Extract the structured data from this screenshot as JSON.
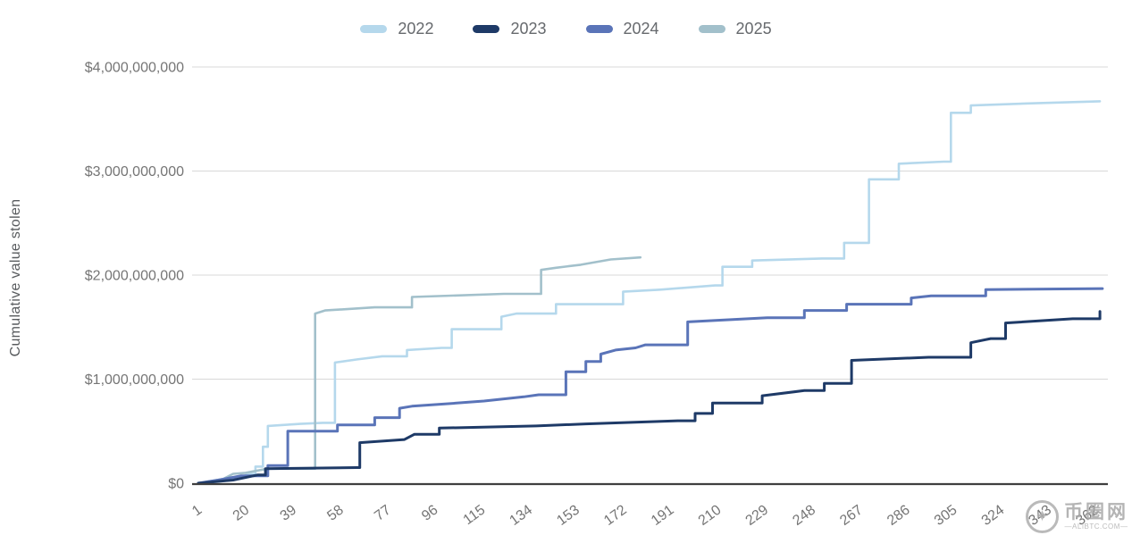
{
  "watermark": {
    "logo_icon": "four-point-star-seal",
    "site_name_cn": "币圈网",
    "site_url_line": "—ALIBTC.COM—"
  },
  "chart_data": {
    "type": "line",
    "subtype": "cumulative-step",
    "title": "",
    "xlabel": "",
    "ylabel": "Cumulative value stolen",
    "legend_position": "top-center",
    "grid": "horizontal",
    "x_axis_unit": "day of year",
    "xlim_days": [
      1,
      365
    ],
    "ylim_billions": [
      0,
      4
    ],
    "x_ticks": [
      1,
      20,
      39,
      58,
      77,
      96,
      115,
      134,
      153,
      172,
      191,
      210,
      229,
      248,
      267,
      286,
      305,
      324,
      343,
      362
    ],
    "y_ticks": [
      {
        "value_billions": 0,
        "label": "$0"
      },
      {
        "value_billions": 1,
        "label": "$1,000,000,000"
      },
      {
        "value_billions": 2,
        "label": "$2,000,000,000"
      },
      {
        "value_billions": 3,
        "label": "$3,000,000,000"
      },
      {
        "value_billions": 4,
        "label": "$4,000,000,000"
      }
    ],
    "series": [
      {
        "name": "2022",
        "color": "#b5d8ec",
        "line_width": 2.6,
        "points_day_valueBillions": [
          [
            1,
            0
          ],
          [
            11,
            0.02
          ],
          [
            18,
            0.05
          ],
          [
            21,
            0.09
          ],
          [
            24,
            0.16
          ],
          [
            27,
            0.35
          ],
          [
            29,
            0.55
          ],
          [
            42,
            0.57
          ],
          [
            51,
            0.58
          ],
          [
            56,
            1.16
          ],
          [
            65,
            1.19
          ],
          [
            75,
            1.22
          ],
          [
            85,
            1.28
          ],
          [
            99,
            1.3
          ],
          [
            103,
            1.48
          ],
          [
            123,
            1.6
          ],
          [
            129,
            1.63
          ],
          [
            145,
            1.72
          ],
          [
            172,
            1.84
          ],
          [
            187,
            1.86
          ],
          [
            209,
            1.9
          ],
          [
            212,
            2.08
          ],
          [
            224,
            2.14
          ],
          [
            252,
            2.16
          ],
          [
            261,
            2.31
          ],
          [
            271,
            2.92
          ],
          [
            283,
            3.07
          ],
          [
            301,
            3.09
          ],
          [
            304,
            3.56
          ],
          [
            312,
            3.63
          ],
          [
            335,
            3.65
          ],
          [
            364,
            3.67
          ]
        ]
      },
      {
        "name": "2023",
        "color": "#1e3a67",
        "line_width": 3,
        "points_day_valueBillions": [
          [
            1,
            0
          ],
          [
            15,
            0.03
          ],
          [
            25,
            0.08
          ],
          [
            28,
            0.14
          ],
          [
            65,
            0.15
          ],
          [
            66,
            0.39
          ],
          [
            84,
            0.42
          ],
          [
            88,
            0.47
          ],
          [
            98,
            0.53
          ],
          [
            137,
            0.55
          ],
          [
            157,
            0.57
          ],
          [
            194,
            0.6
          ],
          [
            201,
            0.67
          ],
          [
            208,
            0.77
          ],
          [
            228,
            0.84
          ],
          [
            245,
            0.89
          ],
          [
            253,
            0.96
          ],
          [
            264,
            1.18
          ],
          [
            295,
            1.21
          ],
          [
            312,
            1.35
          ],
          [
            320,
            1.39
          ],
          [
            326,
            1.54
          ],
          [
            353,
            1.58
          ],
          [
            364,
            1.65
          ]
        ]
      },
      {
        "name": "2024",
        "color": "#5a74b8",
        "line_width": 3,
        "points_day_valueBillions": [
          [
            1,
            0
          ],
          [
            9,
            0.03
          ],
          [
            18,
            0.07
          ],
          [
            29,
            0.17
          ],
          [
            37,
            0.5
          ],
          [
            57,
            0.56
          ],
          [
            72,
            0.63
          ],
          [
            82,
            0.72
          ],
          [
            87,
            0.74
          ],
          [
            105,
            0.77
          ],
          [
            116,
            0.79
          ],
          [
            132,
            0.83
          ],
          [
            138,
            0.85
          ],
          [
            149,
            1.07
          ],
          [
            157,
            1.17
          ],
          [
            163,
            1.24
          ],
          [
            169,
            1.28
          ],
          [
            177,
            1.3
          ],
          [
            181,
            1.33
          ],
          [
            198,
            1.55
          ],
          [
            230,
            1.59
          ],
          [
            245,
            1.66
          ],
          [
            262,
            1.72
          ],
          [
            288,
            1.78
          ],
          [
            296,
            1.8
          ],
          [
            318,
            1.86
          ],
          [
            365,
            1.87
          ]
        ]
      },
      {
        "name": "2025",
        "color": "#a2c0cb",
        "line_width": 2.6,
        "points_day_valueBillions": [
          [
            1,
            0
          ],
          [
            11,
            0.04
          ],
          [
            15,
            0.09
          ],
          [
            20,
            0.1
          ],
          [
            29,
            0.14
          ],
          [
            48,
            1.63
          ],
          [
            52,
            1.66
          ],
          [
            72,
            1.69
          ],
          [
            87,
            1.79
          ],
          [
            124,
            1.82
          ],
          [
            139,
            2.05
          ],
          [
            145,
            2.07
          ],
          [
            155,
            2.1
          ],
          [
            167,
            2.15
          ],
          [
            179,
            2.17
          ]
        ]
      }
    ],
    "colors": {
      "gridline": "#d8d8d8",
      "axis_baseline": "#3f3f3f",
      "tick_label": "#757575"
    }
  }
}
